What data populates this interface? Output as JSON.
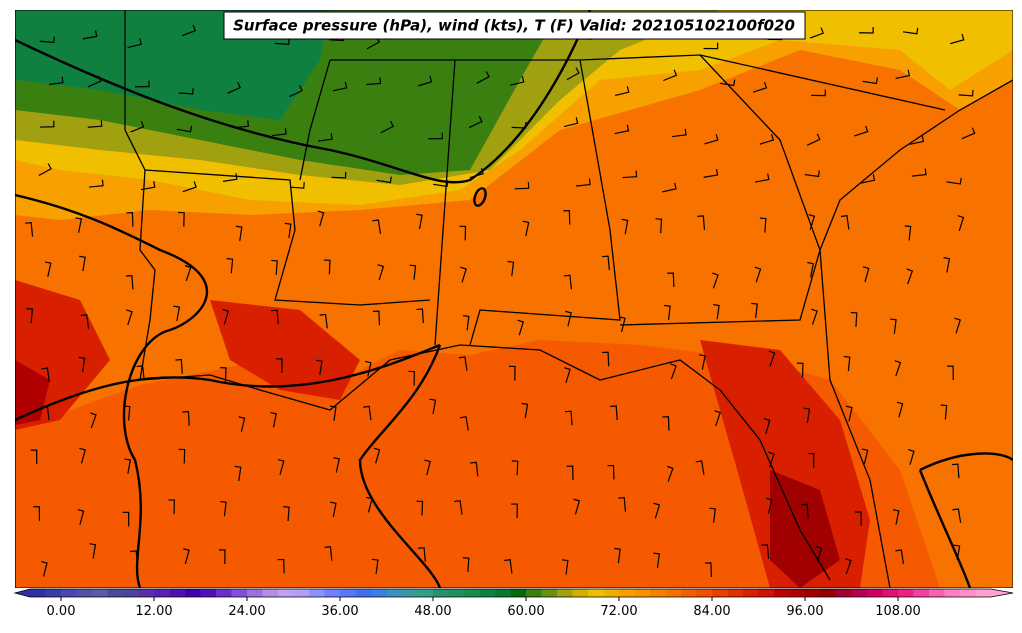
{
  "title": "Surface pressure (hPa), wind (kts), T (F) Valid: 202105102100f020",
  "colorbar": {
    "lim": [
      -4,
      120
    ],
    "ticks": [
      {
        "value": 0,
        "label": "0.00"
      },
      {
        "value": 12,
        "label": "12.00"
      },
      {
        "value": 24,
        "label": "24.00"
      },
      {
        "value": 36,
        "label": "36.00"
      },
      {
        "value": 48,
        "label": "48.00"
      },
      {
        "value": 60,
        "label": "60.00"
      },
      {
        "value": 72,
        "label": "72.00"
      },
      {
        "value": 84,
        "label": "84.00"
      },
      {
        "value": 96,
        "label": "96.00"
      },
      {
        "value": 108,
        "label": "108.00"
      }
    ],
    "colors": [
      "#3030a0",
      "#3a3aa8",
      "#4848b0",
      "#5252a8",
      "#5a5aa8",
      "#4a4a9a",
      "#5040a0",
      "#5830a8",
      "#5a20b0",
      "#4e10b0",
      "#4000b0",
      "#5010b8",
      "#6a30c8",
      "#8050d8",
      "#9c70e0",
      "#b090e8",
      "#c0a0f0",
      "#b0a0f8",
      "#9090ff",
      "#7080ff",
      "#5878f8",
      "#4070f0",
      "#3a80e0",
      "#3a90c0",
      "#3a9aa0",
      "#30a080",
      "#289070",
      "#209060",
      "#1a8a50",
      "#108040",
      "#087830",
      "#006a10",
      "#3a8010",
      "#6a9010",
      "#a0a010",
      "#d0b000",
      "#f0c000",
      "#f0b000",
      "#f8a000",
      "#f89000",
      "#f88000",
      "#f87000",
      "#f06000",
      "#f05000",
      "#e84000",
      "#e03000",
      "#d82000",
      "#d01000",
      "#c00000",
      "#b00000",
      "#a00000",
      "#900000",
      "#a00030",
      "#b80050",
      "#d00060",
      "#e01070",
      "#f02080",
      "#f040a0",
      "#f860b0",
      "#ff80c0",
      "#ff90c8",
      "#ffa0d0"
    ]
  }
}
